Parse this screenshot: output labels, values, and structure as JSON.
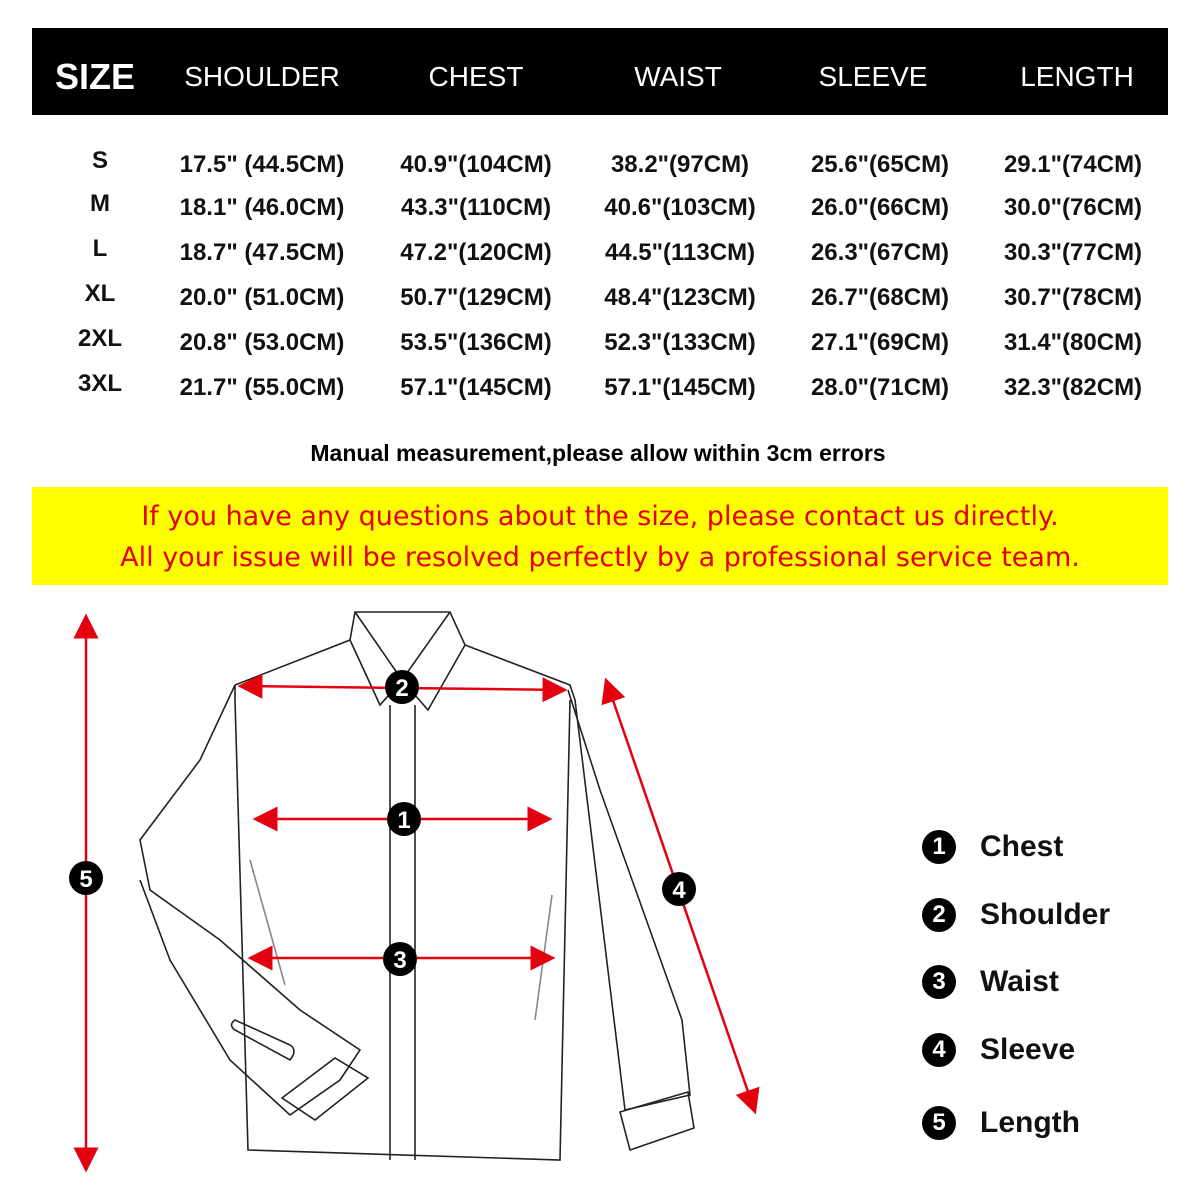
{
  "header": {
    "size": "SIZE",
    "columns": [
      "SHOULDER",
      "CHEST",
      "WAIST",
      "SLEEVE",
      "LENGTH"
    ]
  },
  "rows": [
    {
      "size": "S",
      "values": [
        "17.5\" (44.5CM)",
        "40.9\"(104CM)",
        "38.2\"(97CM)",
        "25.6\"(65CM)",
        "29.1\"(74CM)"
      ]
    },
    {
      "size": "M",
      "values": [
        "18.1\" (46.0CM)",
        "43.3\"(110CM)",
        "40.6\"(103CM)",
        "26.0\"(66CM)",
        "30.0\"(76CM)"
      ]
    },
    {
      "size": "L",
      "values": [
        "18.7\" (47.5CM)",
        "47.2\"(120CM)",
        "44.5\"(113CM)",
        "26.3\"(67CM)",
        "30.3\"(77CM)"
      ]
    },
    {
      "size": "XL",
      "values": [
        "20.0\" (51.0CM)",
        "50.7\"(129CM)",
        "48.4\"(123CM)",
        "26.7\"(68CM)",
        "30.7\"(78CM)"
      ]
    },
    {
      "size": "2XL",
      "values": [
        "20.8\" (53.0CM)",
        "53.5\"(136CM)",
        "52.3\"(133CM)",
        "27.1\"(69CM)",
        "31.4\"(80CM)"
      ]
    },
    {
      "size": "3XL",
      "values": [
        "21.7\" (55.0CM)",
        "57.1\"(145CM)",
        "57.1\"(145CM)",
        "28.0\"(71CM)",
        "32.3\"(82CM)"
      ]
    }
  ],
  "note": "Manual measurement,please allow within 3cm errors",
  "banner": {
    "line1": "If you have any questions about the size, please contact us directly.",
    "line2": "All your issue will be resolved perfectly by a professional service team."
  },
  "diagram": {
    "markers": [
      "1",
      "2",
      "3",
      "4",
      "5"
    ]
  },
  "legend": [
    {
      "num": "1",
      "label": "Chest"
    },
    {
      "num": "2",
      "label": "Shoulder"
    },
    {
      "num": "3",
      "label": "Waist"
    },
    {
      "num": "4",
      "label": "Sleeve"
    },
    {
      "num": "5",
      "label": "Length"
    }
  ],
  "colors": {
    "header_bg": "#000000",
    "banner_bg": "#ffff00",
    "banner_text": "#e3000f",
    "arrow": "#e3000f"
  }
}
